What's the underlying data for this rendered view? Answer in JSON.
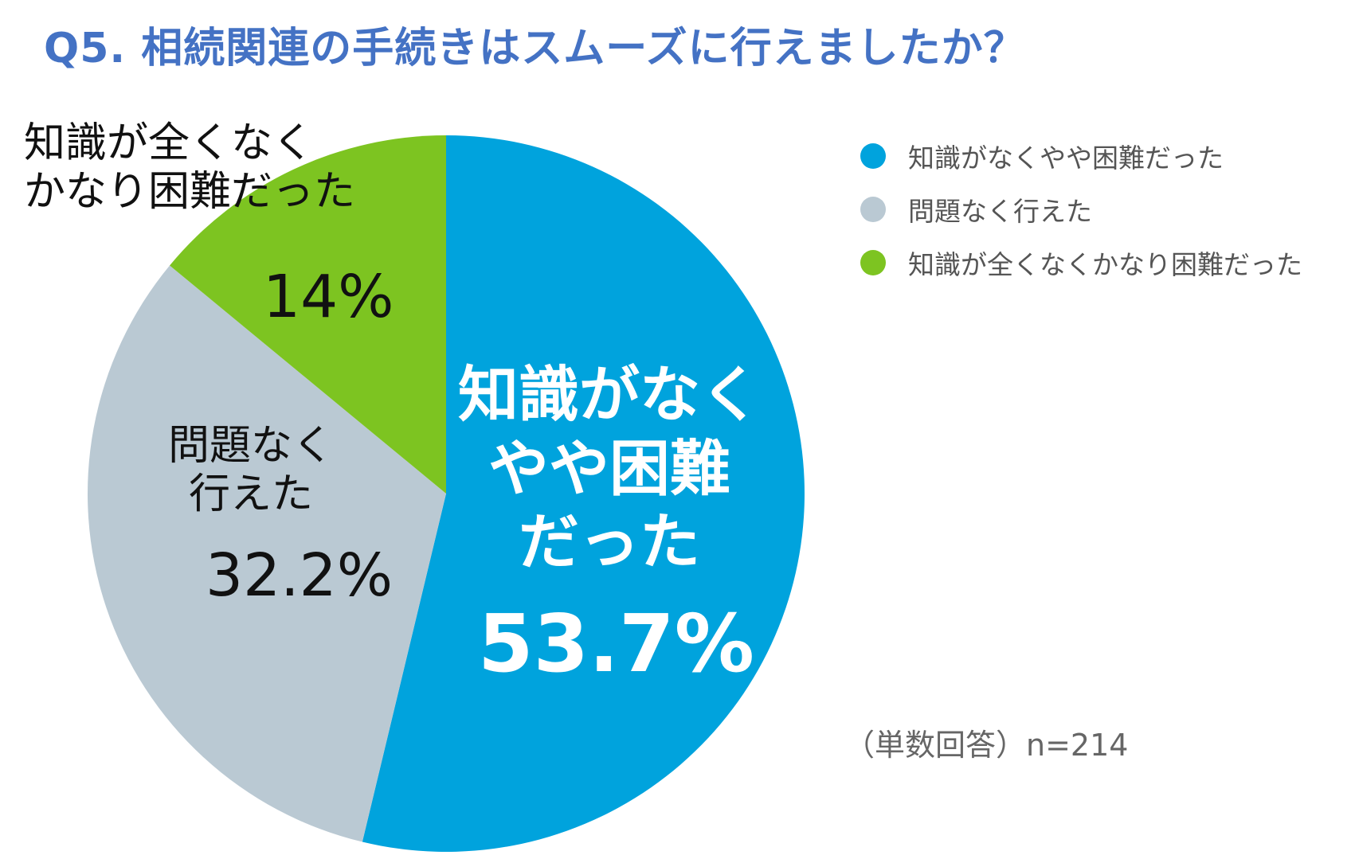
{
  "title": "Q5. 相続関連の手続きはスムーズに行えましたか？",
  "note": "（単数回答）n=214",
  "colors": {
    "title": "#4472C4",
    "blue": "#00A3DD",
    "gray": "#BAC9D3",
    "green": "#7DC421"
  },
  "chart_data": {
    "type": "pie",
    "title": "Q5. 相続関連の手続きはスムーズに行えましたか？",
    "unit": "%",
    "slices": [
      {
        "name": "知識がなくやや困難だった",
        "label_lines": [
          "知識がなく",
          "やや困難",
          "だった"
        ],
        "value": 53.7,
        "value_text": "53.7%",
        "color": "#00A3DD"
      },
      {
        "name": "問題なく行えた",
        "label_lines": [
          "問題なく",
          "行えた"
        ],
        "value": 32.2,
        "value_text": "32.2%",
        "color": "#BAC9D3"
      },
      {
        "name": "知識が全くなくかなり困難だった",
        "label_lines": [
          "知識が全くなく",
          "かなり困難だった"
        ],
        "value": 14,
        "value_text": "14%",
        "color": "#7DC421"
      }
    ],
    "start": "12 o'clock",
    "direction": "clockwise",
    "legend": {
      "position": "top-right",
      "items": [
        "知識がなくやや困難だった",
        "問題なく行えた",
        "知識が全くなくかなり困難だった"
      ]
    }
  }
}
